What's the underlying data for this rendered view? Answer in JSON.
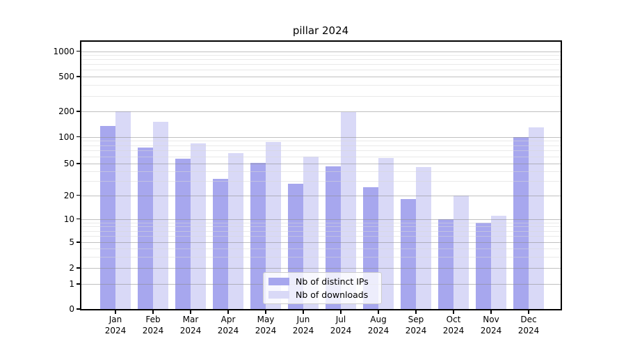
{
  "chart_data": {
    "type": "bar",
    "title": "pillar 2024",
    "categories": [
      "Jan 2024",
      "Feb 2024",
      "Mar 2024",
      "Apr 2024",
      "May 2024",
      "Jun 2024",
      "Jul 2024",
      "Aug 2024",
      "Sep 2024",
      "Oct 2024",
      "Nov 2024",
      "Dec 2024"
    ],
    "series": [
      {
        "name": "Nb of distinct IPs",
        "color": "#a7a7ee",
        "values": [
          135,
          75,
          57,
          32,
          51,
          28,
          46,
          25,
          18,
          10,
          9,
          100
        ]
      },
      {
        "name": "Nb of downloads",
        "color": "#d9d9f7",
        "values": [
          200,
          150,
          85,
          65,
          87,
          60,
          195,
          58,
          45,
          20,
          11,
          130
        ]
      }
    ],
    "xlabel": "",
    "ylabel": "",
    "yscale": "symlog",
    "y_ticks": [
      0,
      1,
      2,
      5,
      10,
      20,
      50,
      100,
      200,
      500,
      1000
    ],
    "ylim": [
      0,
      1300
    ],
    "grid": true,
    "legend_position": "lower center",
    "colors": {
      "major_grid": "#c0c0c0",
      "minor_grid": "#e9e9e9",
      "axis": "#000000"
    }
  }
}
